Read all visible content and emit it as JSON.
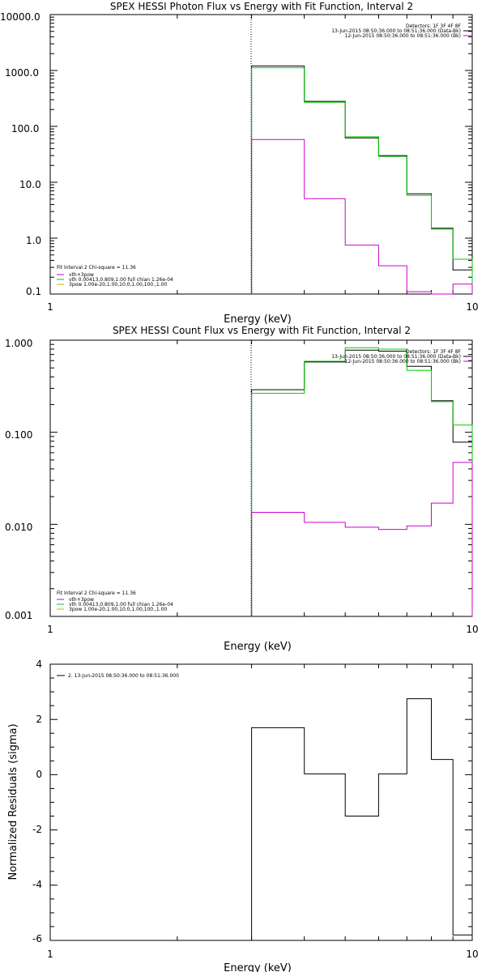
{
  "chart_data": [
    {
      "type": "line",
      "title": "SPEX HESSI Photon Flux vs Energy with Fit Function, Interval 2",
      "xlabel": "Energy (keV)",
      "ylabel": "",
      "x_scale": "log",
      "y_scale": "log",
      "xlim": [
        1,
        10
      ],
      "ylim": [
        0.1,
        10000
      ],
      "x_tick_labels": [
        "1",
        "10"
      ],
      "y_tick_labels": [
        "0.1",
        "1.0",
        "10.0",
        "100.0",
        "1000.0",
        "10000.0"
      ],
      "vline_x": 3.0,
      "header_lines": [
        "Detectors: 1F 3F 4F 8F",
        "13-Jun-2015 08:50:36.000 to 08:51:36.000 (Data-Bk)",
        "12-Jun-2015 08:50:36.000 to 08:51:36.000 (Bk)"
      ],
      "fit_text": [
        "Fit Interval 2   Chi-square = 11.36",
        "vth+3pow",
        "vth 0.00413,0.809,1.00   full chian 1.26e-04",
        "3pow 1.00e-20,1.00,10.0,1.00,100.,1.00"
      ],
      "series": [
        {
          "color": "#000000",
          "edges": [
            3.0,
            4.0,
            5.0,
            6.0,
            7.0,
            8.0,
            9.0,
            10.0
          ],
          "values": [
            1200,
            280,
            62,
            30,
            6.2,
            1.5,
            0.27
          ]
        },
        {
          "color": "#00cc00",
          "edges": [
            3.0,
            4.0,
            5.0,
            6.0,
            7.0,
            8.0,
            9.0,
            10.0
          ],
          "values": [
            1120,
            270,
            65,
            29,
            5.8,
            1.45,
            0.42
          ]
        },
        {
          "color": "#cc00cc",
          "edges": [
            3.0,
            4.0,
            5.0,
            6.0,
            7.0,
            8.0,
            9.0,
            10.0
          ],
          "values": [
            58,
            5.1,
            0.75,
            0.32,
            0.11,
            0.098,
            0.15
          ]
        }
      ]
    },
    {
      "type": "line",
      "title": "SPEX HESSI Count Flux vs Energy with Fit Function, Interval 2",
      "xlabel": "Energy (keV)",
      "ylabel": "",
      "x_scale": "log",
      "y_scale": "log",
      "xlim": [
        1,
        10
      ],
      "ylim": [
        0.001,
        1.0
      ],
      "x_tick_labels": [
        "1",
        "10"
      ],
      "y_tick_labels": [
        "0.001",
        "0.010",
        "0.100",
        "1.000"
      ],
      "vline_x": 3.0,
      "header_lines": [
        "Detectors: 1F 3F 4F 8F",
        "13-Jun-2015 08:50:36.000 to 08:51:36.000 (Data-Bk)",
        "12-Jun-2015 08:50:36.000 to 08:51:36.000 (Bk)"
      ],
      "fit_text": [
        "Fit Interval 2   Chi-square = 11.36",
        "vth+3pow",
        "vth 0.00413,0.809,1.00   full chian 1.26e-04",
        "3pow 1.00e-20,1.00,10.0,1.00,100.,1.00"
      ],
      "series": [
        {
          "color": "#000000",
          "edges": [
            3.0,
            4.0,
            5.0,
            6.0,
            7.0,
            8.0,
            9.0,
            10.0
          ],
          "values": [
            0.29,
            0.58,
            0.78,
            0.76,
            0.52,
            0.22,
            0.078
          ]
        },
        {
          "color": "#00cc00",
          "edges": [
            3.0,
            4.0,
            5.0,
            6.0,
            7.0,
            8.0,
            9.0,
            10.0
          ],
          "values": [
            0.265,
            0.59,
            0.83,
            0.8,
            0.47,
            0.215,
            0.12
          ]
        },
        {
          "color": "#cc00cc",
          "edges": [
            3.0,
            4.0,
            5.0,
            6.0,
            7.0,
            8.0,
            9.0,
            10.0
          ],
          "values": [
            0.0135,
            0.0105,
            0.0093,
            0.0088,
            0.0096,
            0.017,
            0.047
          ]
        }
      ]
    },
    {
      "type": "line",
      "title": "",
      "xlabel": "Energy (keV)",
      "ylabel": "Normalized Residuals (sigma)",
      "x_scale": "log",
      "y_scale": "linear",
      "xlim": [
        1,
        10
      ],
      "ylim": [
        -6,
        4
      ],
      "x_tick_labels": [
        "1",
        "10"
      ],
      "y_tick_labels": [
        "-6",
        "-4",
        "-2",
        "0",
        "2",
        "4"
      ],
      "legend": "2. 13-Jun-2015 08:50:36.000 to 08:51:36.000",
      "series": [
        {
          "color": "#000000",
          "edges": [
            3.0,
            4.0,
            5.0,
            6.0,
            7.0,
            8.0,
            9.0,
            10.0
          ],
          "values": [
            1.7,
            0.03,
            -1.5,
            0.03,
            2.75,
            0.55,
            -5.8
          ]
        }
      ]
    }
  ]
}
